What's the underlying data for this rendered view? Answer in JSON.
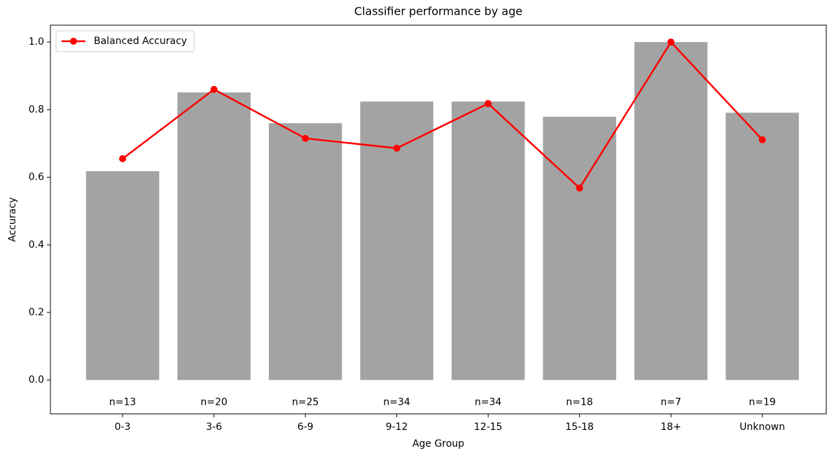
{
  "chart_data": {
    "type": "bar",
    "title": "Classifier performance by age",
    "xlabel": "Age Group",
    "ylabel": "Accuracy",
    "categories": [
      "0-3",
      "3-6",
      "6-9",
      "9-12",
      "12-15",
      "15-18",
      "18+",
      "Unknown"
    ],
    "series": [
      {
        "type": "bar",
        "color": "#a3a3a3",
        "values": [
          0.618,
          0.851,
          0.76,
          0.824,
          0.824,
          0.779,
          1.0,
          0.791
        ]
      },
      {
        "type": "line",
        "name": "Balanced Accuracy",
        "color": "#ff0000",
        "values": [
          0.655,
          0.86,
          0.715,
          0.686,
          0.818,
          0.568,
          1.0,
          0.711
        ]
      }
    ],
    "annotations": [
      "n=13",
      "n=20",
      "n=25",
      "n=34",
      "n=34",
      "n=18",
      "n=7",
      "n=19"
    ],
    "ylim": [
      -0.1,
      1.05
    ],
    "yticks": [
      {
        "value": 0,
        "label": "0.0"
      },
      0.2,
      0.4,
      0.6,
      0.8,
      {
        "value": 1,
        "label": "1.0"
      }
    ],
    "grid": false,
    "legend": "upper-left"
  }
}
